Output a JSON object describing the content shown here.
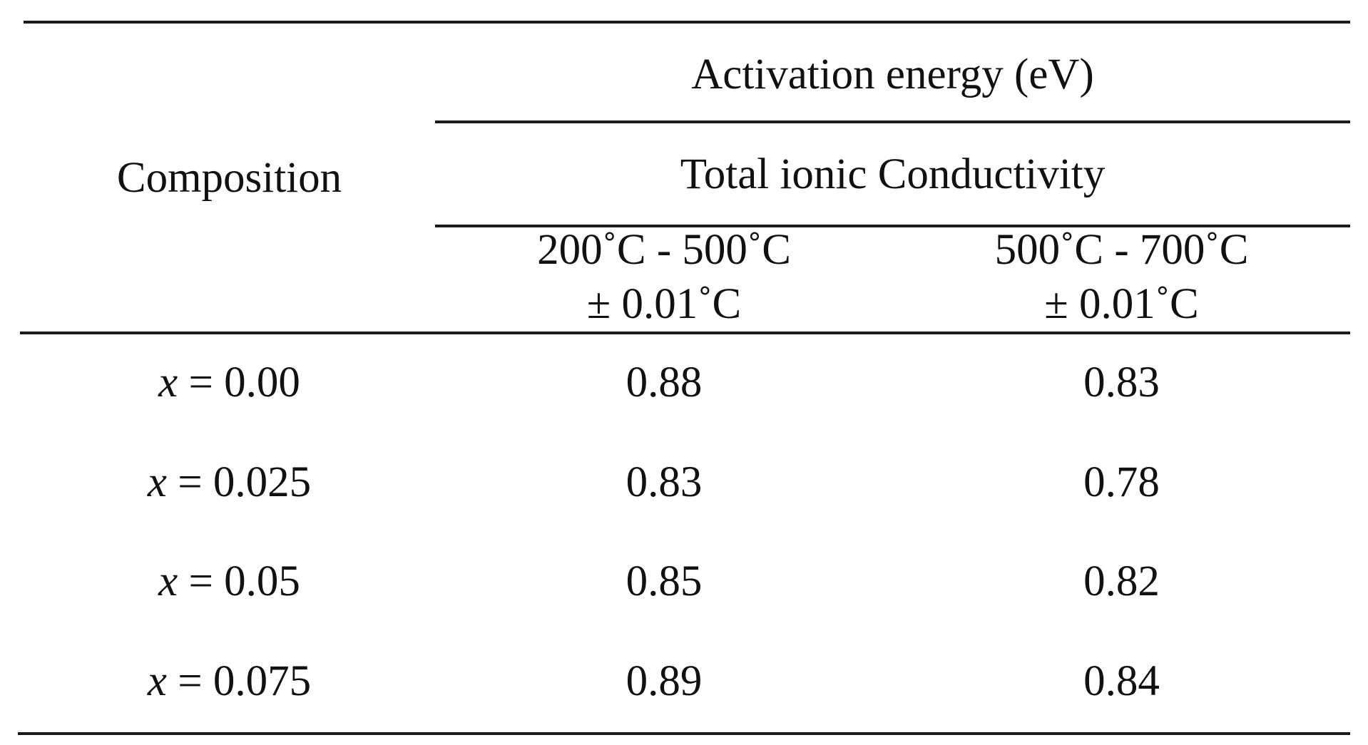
{
  "table": {
    "header": {
      "composition": "Composition",
      "group": "Activation energy (eV)",
      "subgroup": "Total ionic Conductivity",
      "columns": [
        {
          "range": "200˚C - 500˚C",
          "tolerance": "± 0.01˚C"
        },
        {
          "range": "500˚C - 700˚C",
          "tolerance": "± 0.01˚C"
        }
      ]
    },
    "rows": [
      {
        "var": "x",
        "eq": " = 0.00",
        "values": [
          "0.88",
          "0.83"
        ]
      },
      {
        "var": "x",
        "eq": " = 0.025",
        "values": [
          "0.83",
          "0.78"
        ]
      },
      {
        "var": "x",
        "eq": " = 0.05",
        "values": [
          "0.85",
          "0.82"
        ]
      },
      {
        "var": "x",
        "eq": " = 0.075",
        "values": [
          "0.89",
          "0.84"
        ]
      }
    ]
  }
}
